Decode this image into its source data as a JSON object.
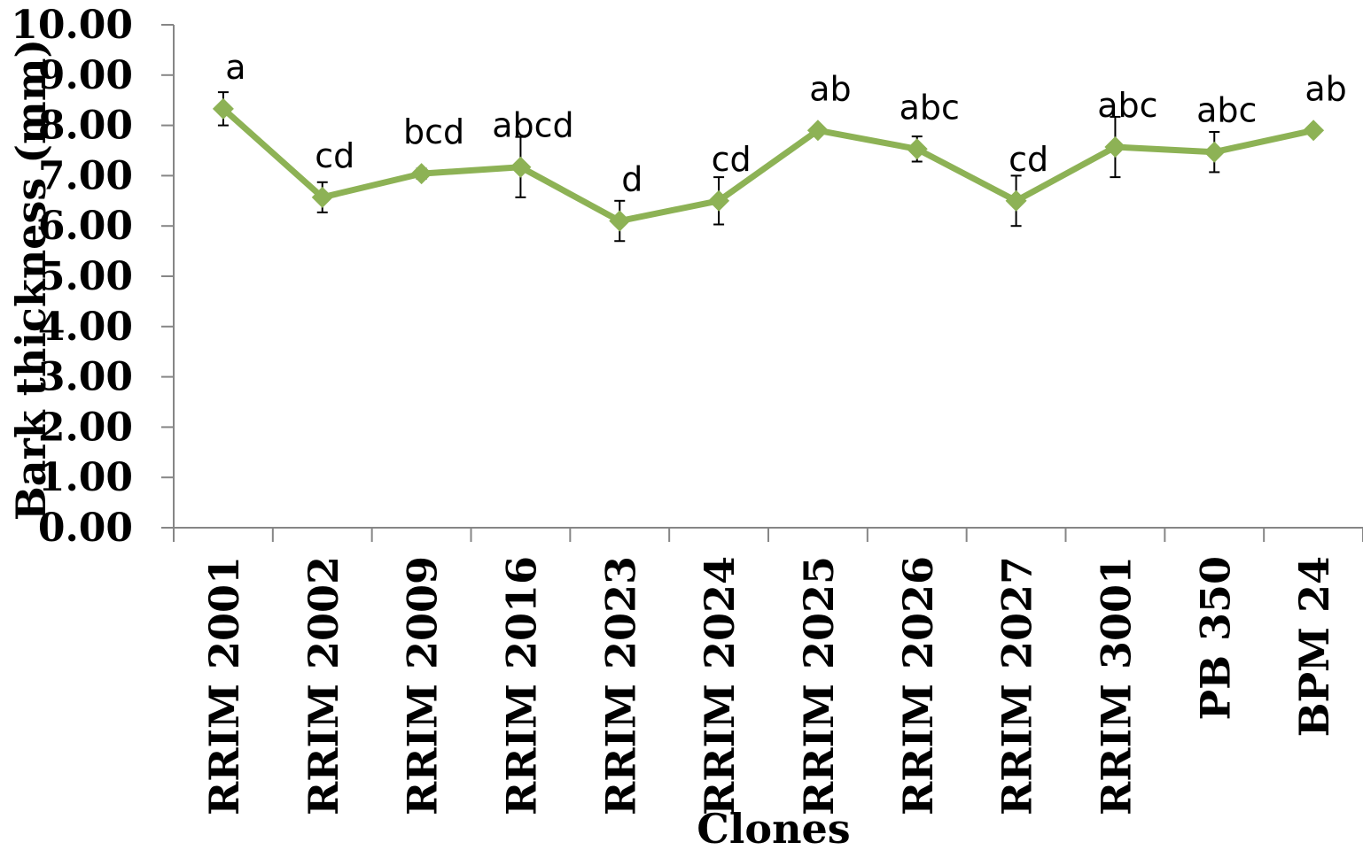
{
  "chart_data": {
    "type": "line",
    "xlabel": "Clones",
    "ylabel": "Bark thickness (mm)",
    "ylim": [
      0,
      10
    ],
    "y_ticks": [
      "0.00",
      "1.00",
      "2.00",
      "3.00",
      "4.00",
      "5.00",
      "6.00",
      "7.00",
      "8.00",
      "9.00",
      "10.00"
    ],
    "grid": false,
    "line_color": "#8db255",
    "categories": [
      "RRIM 2001",
      "RRIM 2002",
      "RRIM 2009",
      "RRIM 2016",
      "RRIM 2023",
      "RRIM 2024",
      "RRIM 2025",
      "RRIM 2026",
      "RRIM 2027",
      "RRIM 3001",
      "PB 350",
      "BPM 24"
    ],
    "series": [
      {
        "values": [
          8.33,
          6.57,
          7.04,
          7.17,
          6.1,
          6.5,
          7.9,
          7.53,
          6.5,
          7.57,
          7.47,
          7.9
        ],
        "error": [
          0.33,
          0.3,
          0.1,
          0.6,
          0.4,
          0.47,
          0.05,
          0.25,
          0.5,
          0.6,
          0.4,
          0.05
        ],
        "significance": [
          "a",
          "cd",
          "bcd",
          "abcd",
          "d",
          "cd",
          "ab",
          "abc",
          "cd",
          "abc",
          "abc",
          "ab"
        ]
      }
    ]
  }
}
